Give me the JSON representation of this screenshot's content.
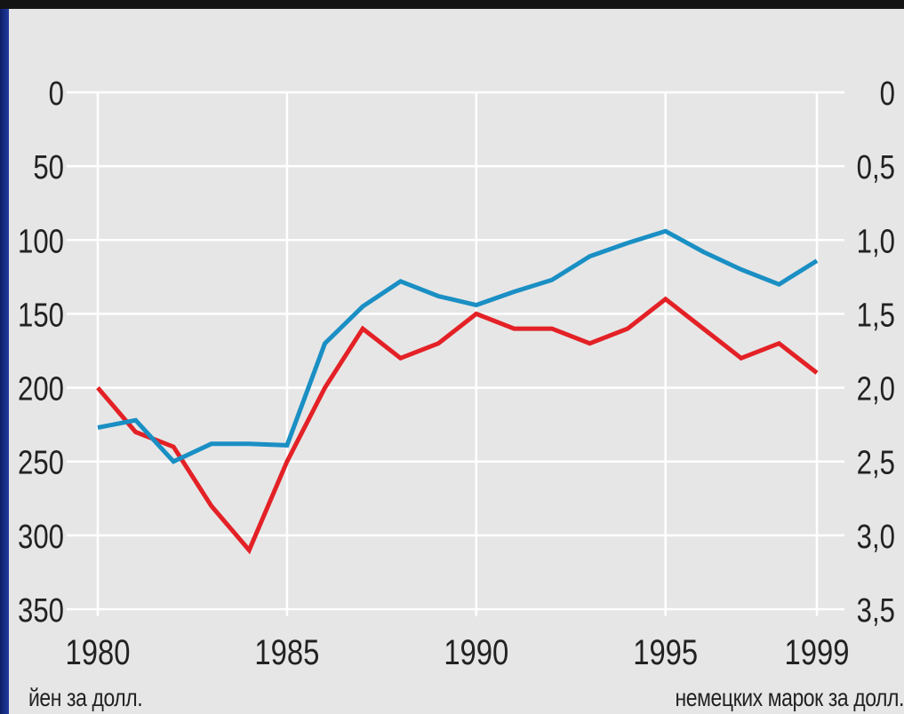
{
  "chart_data": {
    "type": "line",
    "x": [
      1980,
      1981,
      1982,
      1983,
      1984,
      1985,
      1986,
      1987,
      1988,
      1989,
      1990,
      1991,
      1992,
      1993,
      1994,
      1995,
      1996,
      1997,
      1998,
      1999
    ],
    "x_ticks": [
      "1980",
      "1985",
      "1990",
      "1995",
      "1999"
    ],
    "y_left_ticks": [
      "0",
      "50",
      "100",
      "150",
      "200",
      "250",
      "300",
      "350"
    ],
    "y_right_ticks": [
      "0",
      "0,5",
      "1,0",
      "1,5",
      "2,0",
      "2,5",
      "3,0",
      "3,5"
    ],
    "y_left_range": [
      0,
      350
    ],
    "y_right_range": [
      0,
      3.5
    ],
    "y_inverted": true,
    "grid": true,
    "left_axis_label": "йен за долл.",
    "right_axis_label": "немецких марок за долл.",
    "series": [
      {
        "axis": "left",
        "color": "#e32126",
        "values": [
          200,
          230,
          240,
          280,
          310,
          250,
          200,
          160,
          180,
          170,
          150,
          160,
          160,
          170,
          160,
          140,
          160,
          180,
          170,
          190
        ]
      },
      {
        "axis": "right",
        "color": "#1a8fc4",
        "values": [
          2.27,
          2.22,
          2.5,
          2.38,
          2.38,
          2.39,
          1.7,
          1.45,
          1.28,
          1.38,
          1.44,
          1.35,
          1.27,
          1.11,
          1.02,
          0.94,
          1.08,
          1.2,
          1.3,
          1.14
        ]
      }
    ]
  }
}
